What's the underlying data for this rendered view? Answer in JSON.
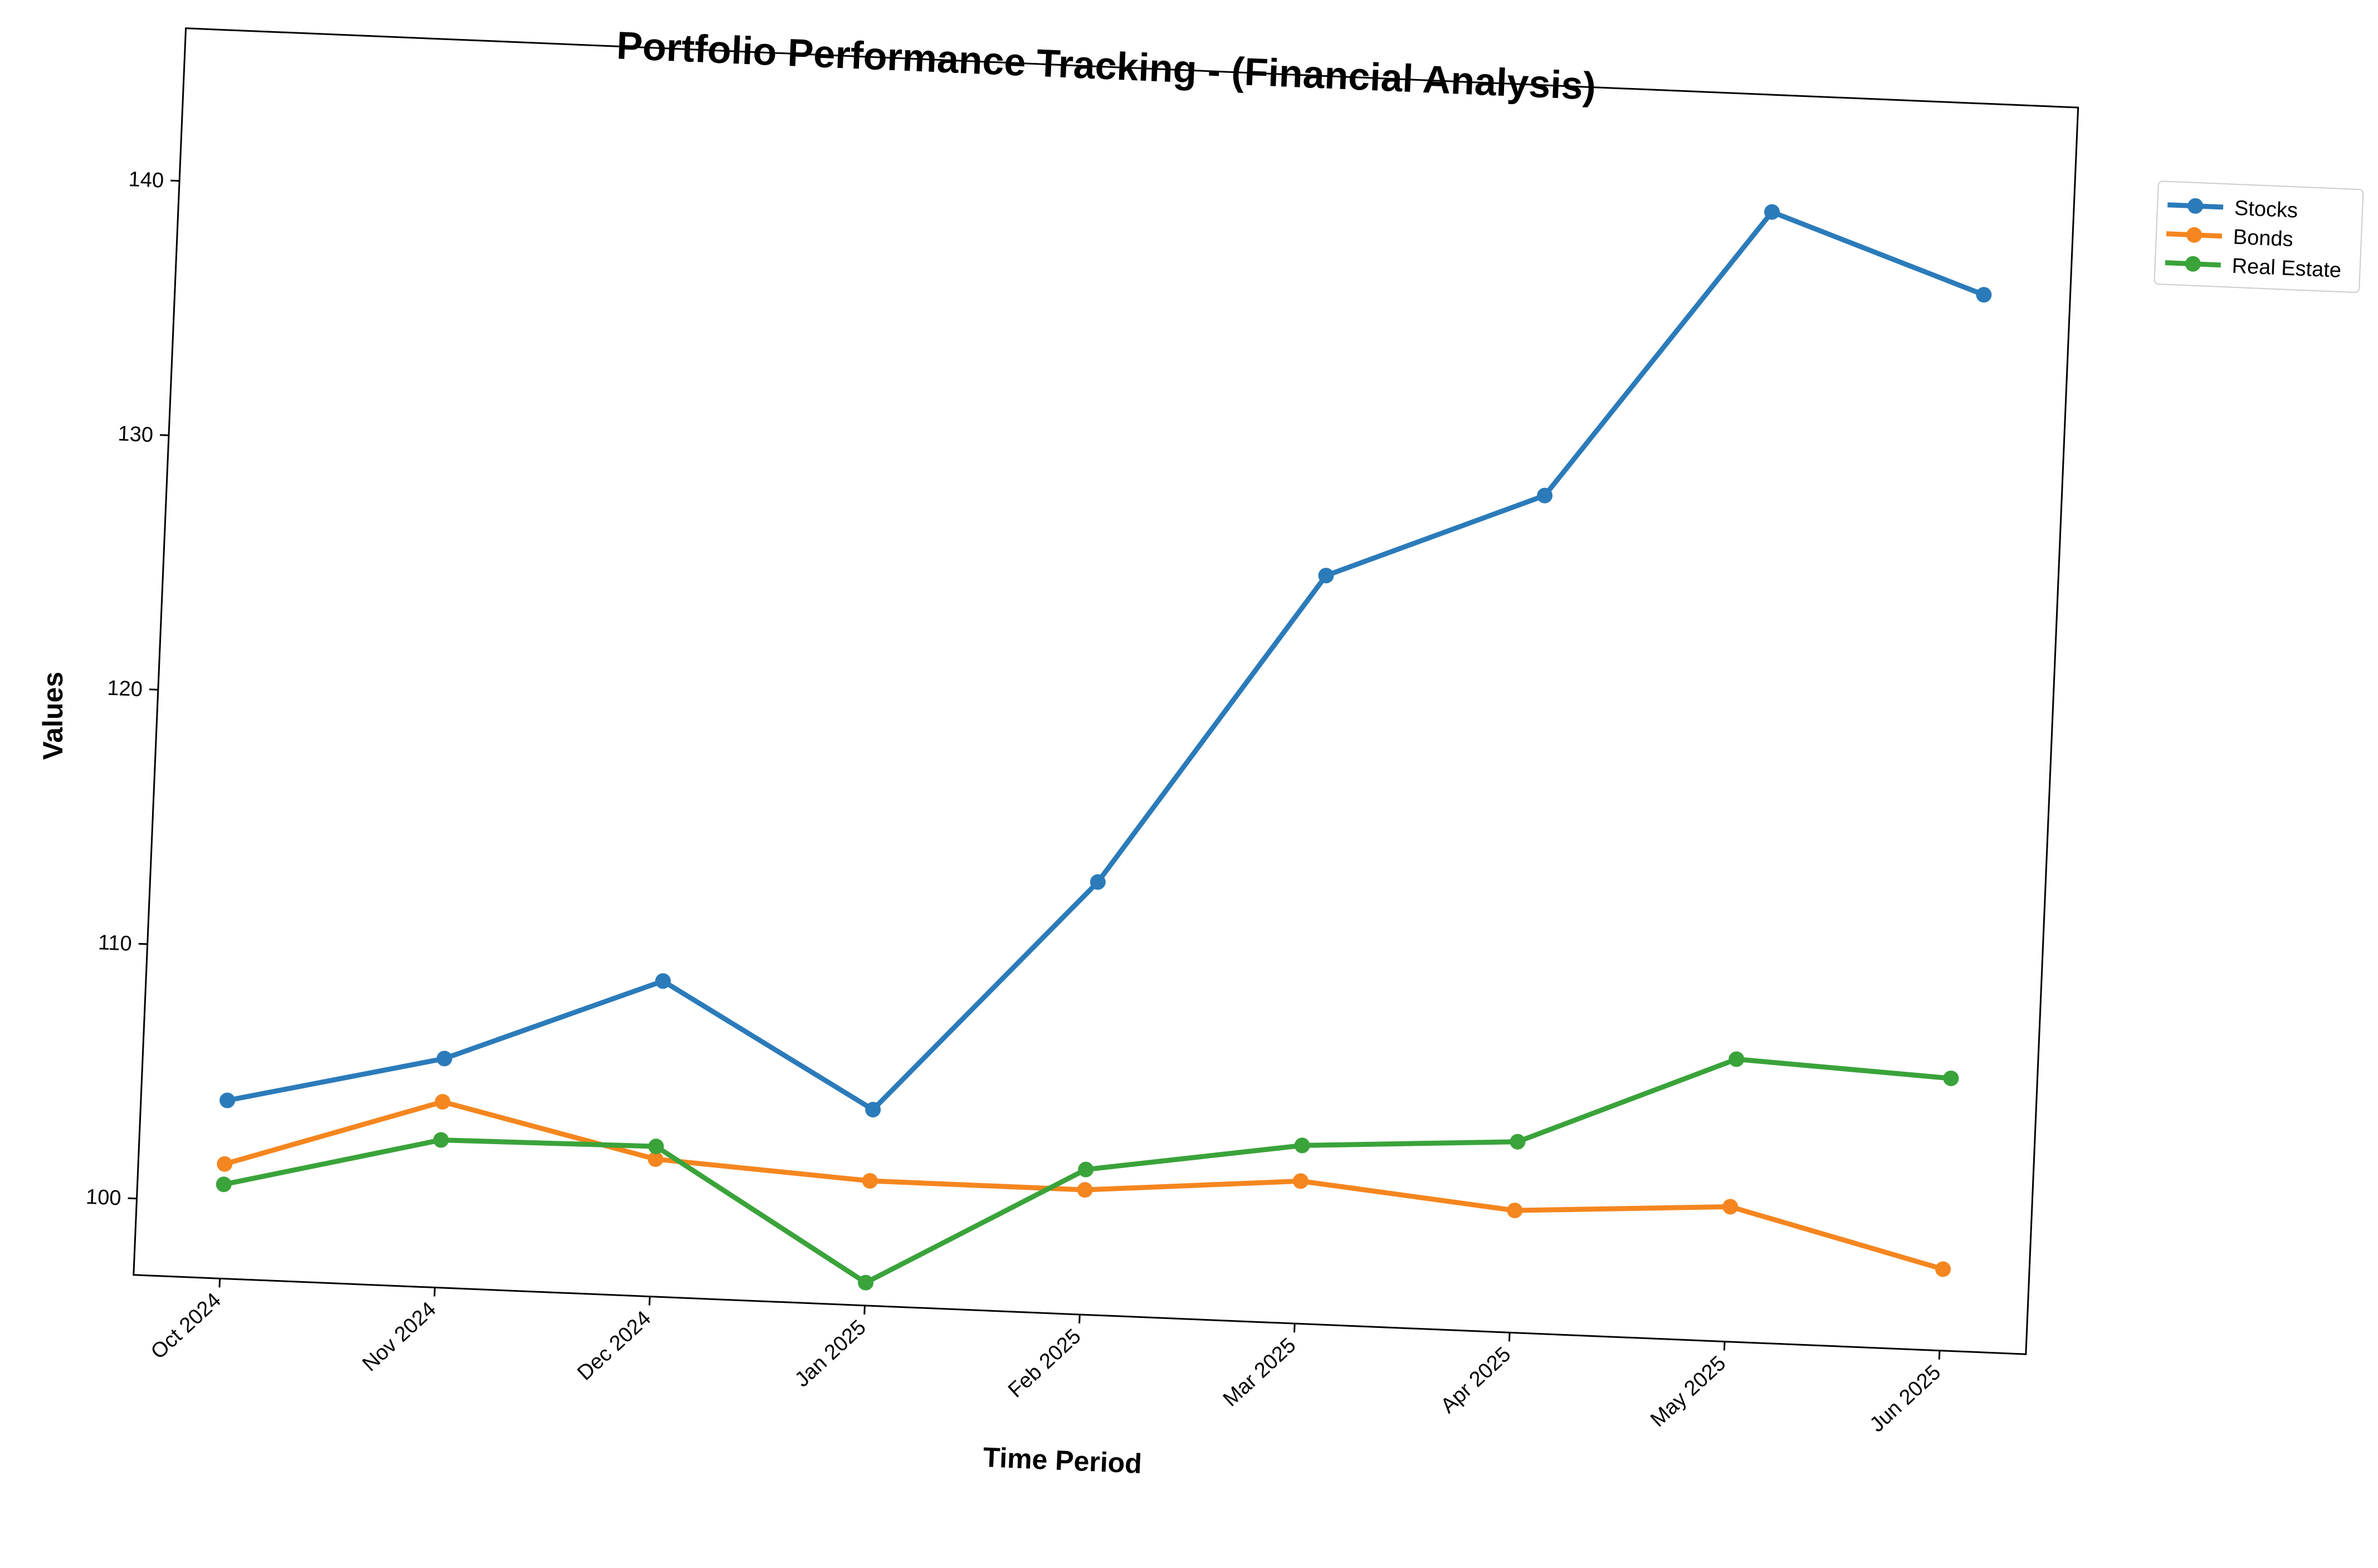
{
  "chart_data": {
    "type": "line",
    "title": "Portfolio Performance Tracking - (Financial Analysis)",
    "xlabel": "Time Period",
    "ylabel": "Values",
    "categories": [
      "Oct 2024",
      "Nov 2024",
      "Dec 2024",
      "Jan 2025",
      "Feb 2025",
      "Mar 2025",
      "Apr 2025",
      "May 2025",
      "Jun 2025"
    ],
    "y_ticks": [
      100,
      110,
      120,
      130,
      140
    ],
    "ylim": [
      97.0,
      146.0
    ],
    "grid": false,
    "legend_position": "top-right, outside plot",
    "series": [
      {
        "name": "Stocks",
        "color": "#2b7bba",
        "values": [
          104.0,
          106.0,
          109.4,
          104.7,
          114.0,
          126.4,
          129.9,
          141.4,
          138.5
        ]
      },
      {
        "name": "Bonds",
        "color": "#f5861f",
        "values": [
          101.5,
          104.3,
          102.4,
          101.9,
          101.9,
          102.6,
          101.8,
          102.3,
          100.2
        ]
      },
      {
        "name": "Real Estate",
        "color": "#3aa33a",
        "values": [
          100.7,
          102.8,
          102.9,
          97.9,
          102.7,
          104.0,
          104.5,
          108.1,
          107.7
        ]
      }
    ]
  }
}
